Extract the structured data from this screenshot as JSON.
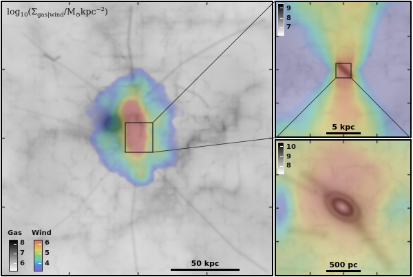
{
  "title_parts": [
    {
      "t": "log",
      "v": "n"
    },
    {
      "t": "10",
      "v": "sub"
    },
    {
      "t": "(Σ",
      "v": "n"
    },
    {
      "t": "gas|wind",
      "v": "sub"
    },
    {
      "t": "/M",
      "v": "n"
    },
    {
      "t": "⊙",
      "v": "sub"
    },
    {
      "t": "kpc",
      "v": "n"
    },
    {
      "t": "−2",
      "v": "sup"
    },
    {
      "t": ")",
      "v": "n"
    }
  ],
  "main_panel": {
    "scale_bar": "50 kpc",
    "colorbars": {
      "gas": {
        "label": "Gas",
        "ticks": [
          "8",
          "7",
          "6"
        ]
      },
      "wind": {
        "label": "Wind",
        "ticks": [
          "6",
          "5",
          "4"
        ]
      }
    }
  },
  "zoom_panel_top": {
    "scale_bar": "5 kpc",
    "colorbar_ticks": [
      "9",
      "8",
      "7"
    ]
  },
  "zoom_panel_bottom": {
    "scale_bar": "500 pc",
    "colorbar_ticks": [
      "10",
      "9",
      "8"
    ]
  },
  "colors": {
    "gas_colormap_high_to_low": [
      "#000000",
      "#ffffff"
    ],
    "wind_colormap_high_to_low": [
      "#d86e6e",
      "#e0a85c",
      "#d8d064",
      "#8cc87c",
      "#62c8c4",
      "#5a82dc",
      "#7a70c8"
    ],
    "panel_border": "#000000",
    "annotation_line": "#333333",
    "background": "#ffffff"
  },
  "chart_data": [
    {
      "type": "heatmap",
      "panel": "main",
      "title": "log10(Sigma_gas|wind / Msun kpc^-2)",
      "colorbars": [
        {
          "label": "Gas",
          "tick_labels": [
            8,
            7,
            6
          ],
          "colormap": "grayscale, black = high"
        },
        {
          "label": "Wind",
          "tick_labels": [
            6,
            5,
            4
          ],
          "colormap": "rainbow, red = high, blue/purple = low"
        }
      ],
      "scale_bar_label": "50 kpc",
      "features": [
        "filamentary grayscale gas surface-density map",
        "lumpy purple/cyan/yellow wind overlay blob at center",
        "black zoom box linked by lines to top-right panel"
      ]
    },
    {
      "type": "heatmap",
      "panel": "zoom-5kpc",
      "colorbar_tick_labels": [
        9,
        8,
        7
      ],
      "scale_bar_label": "5 kpc",
      "features": [
        "biconical yellow outflow with cyan flanks and purple-gray side wedges",
        "red nucleus with dark streak",
        "black zoom box linked by lines to bottom-right panel"
      ]
    },
    {
      "type": "heatmap",
      "panel": "zoom-500pc",
      "colorbar_tick_labels": [
        10,
        9,
        8
      ],
      "scale_bar_label": "500 pc",
      "features": [
        "dark nuclear gas disk with ring structure on pink wind background",
        "yellow-green and cyan outskirts, purple patch at left edge"
      ]
    }
  ]
}
